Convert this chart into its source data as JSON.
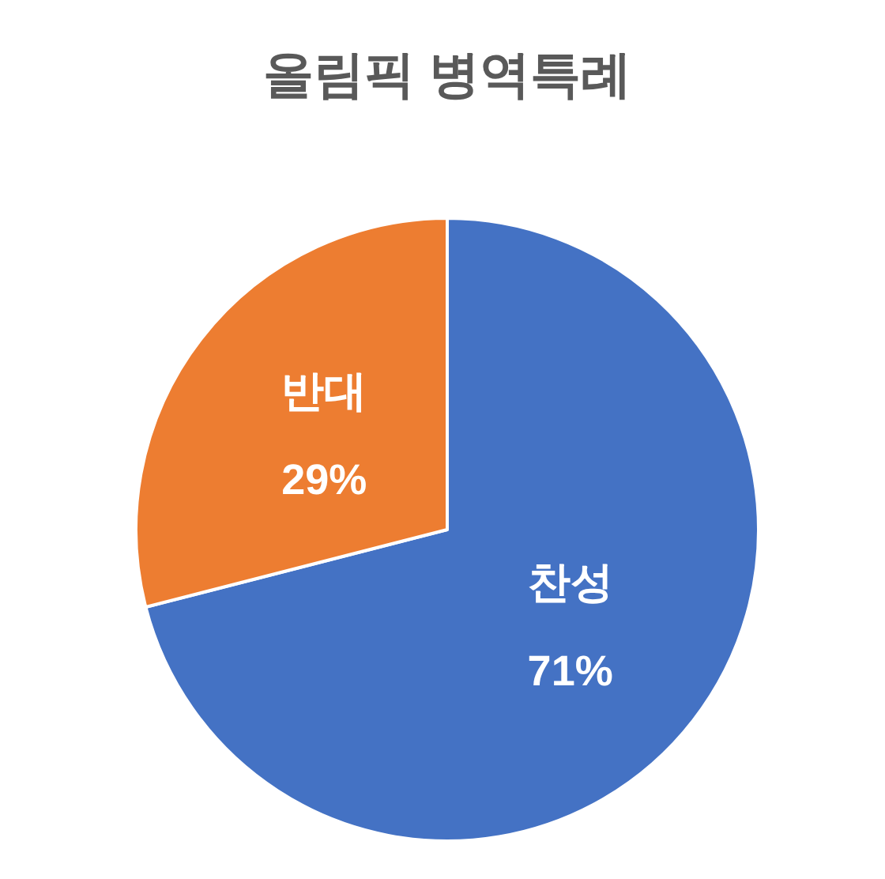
{
  "chart_data": {
    "type": "pie",
    "title": "올림픽 병역특례",
    "categories": [
      "찬성",
      "반대"
    ],
    "values": [
      71,
      29
    ],
    "colors": [
      "#4472c4",
      "#ed7d31"
    ],
    "value_labels": [
      "71%",
      "29%"
    ]
  }
}
